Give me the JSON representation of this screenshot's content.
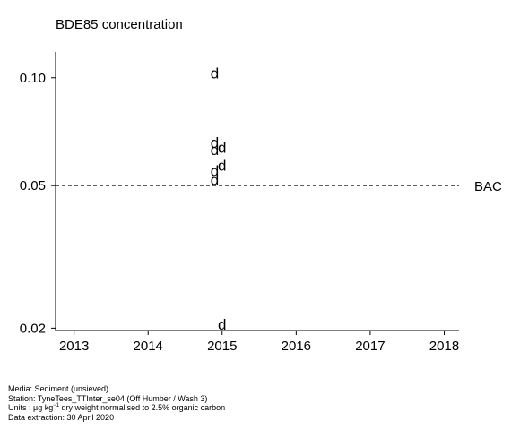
{
  "chart_data": {
    "type": "scatter",
    "title": "BDE85 concentration",
    "xlabel": "",
    "ylabel": "",
    "y_scale": "log",
    "xlim": [
      2012.75,
      2018.2
    ],
    "ylim": [
      0.0197,
      0.118
    ],
    "x_ticks": [
      2013,
      2014,
      2015,
      2016,
      2017,
      2018
    ],
    "y_ticks": [
      0.02,
      0.05,
      0.1
    ],
    "y_tick_labels": [
      "0.02",
      "0.05",
      "0.10"
    ],
    "marker_symbol": "d",
    "points": [
      {
        "x": 2014.9,
        "y": 0.103
      },
      {
        "x": 2014.9,
        "y": 0.066
      },
      {
        "x": 2014.9,
        "y": 0.063
      },
      {
        "x": 2015.0,
        "y": 0.064
      },
      {
        "x": 2014.9,
        "y": 0.055
      },
      {
        "x": 2015.0,
        "y": 0.057
      },
      {
        "x": 2014.9,
        "y": 0.052
      },
      {
        "x": 2015.0,
        "y": 0.0205
      }
    ],
    "reference_lines": [
      {
        "label": "BAC",
        "y": 0.05,
        "style": "dashed"
      }
    ],
    "grid": false
  },
  "footer": {
    "media": "Media: Sediment (unsieved)",
    "station": "Station: TyneTees_TTInter_se04 (Off Humber / Wash 3)",
    "units_prefix": "Units : µg kg",
    "units_sup": "−1",
    "units_suffix": " dry weight normalised to 2.5% organic carbon",
    "extraction": "Data extraction: 30 April 2020"
  }
}
